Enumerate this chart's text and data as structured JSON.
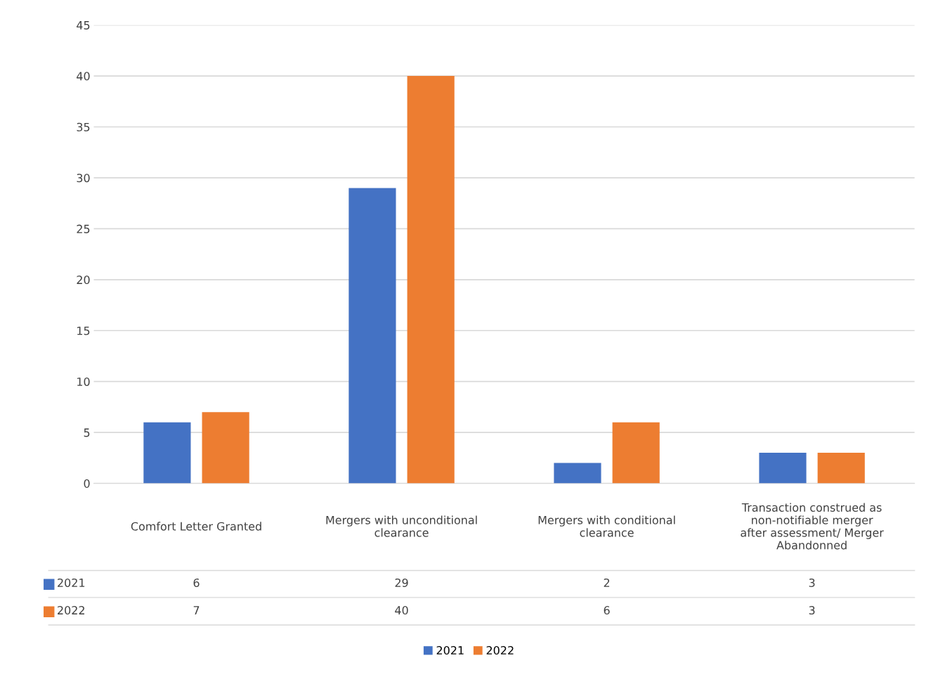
{
  "chart_data": {
    "type": "bar",
    "categories": [
      "Comfort Letter Granted",
      "Mergers with unconditional clearance",
      "Mergers with conditional clearance",
      "Transaction construed as non-notifiable merger after assessment/ Merger Abandonned"
    ],
    "series": [
      {
        "name": "2021",
        "color": "#4472c4",
        "values": [
          6,
          29,
          2,
          3
        ]
      },
      {
        "name": "2022",
        "color": "#ed7d31",
        "values": [
          7,
          40,
          6,
          3
        ]
      }
    ],
    "ylim": [
      0,
      45
    ],
    "yticks": [
      0,
      5,
      10,
      15,
      20,
      25,
      30,
      35,
      40,
      45
    ],
    "grid": "y",
    "legend": "bottom",
    "data_labels": true
  }
}
